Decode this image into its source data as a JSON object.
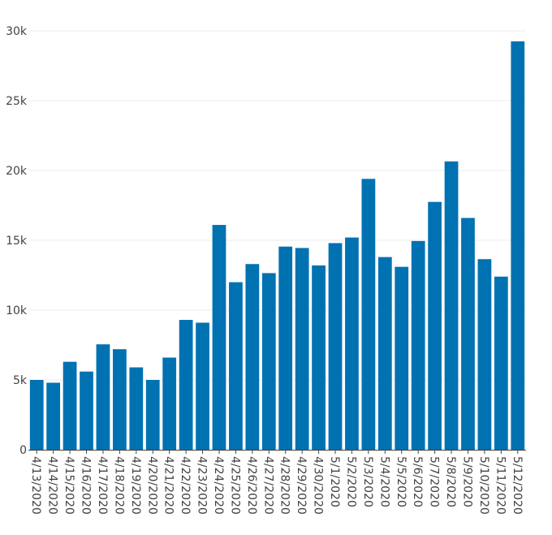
{
  "chart_data": {
    "type": "bar",
    "title": "",
    "xlabel": "",
    "ylabel": "",
    "ylim": [
      0,
      30000
    ],
    "y_ticks": [
      {
        "value": 0,
        "label": "0"
      },
      {
        "value": 5000,
        "label": "5k"
      },
      {
        "value": 10000,
        "label": "10k"
      },
      {
        "value": 15000,
        "label": "15k"
      },
      {
        "value": 20000,
        "label": "20k"
      },
      {
        "value": 25000,
        "label": "25k"
      },
      {
        "value": 30000,
        "label": "30k"
      }
    ],
    "grid": true,
    "bar_color": "#0072b2",
    "categories": [
      "4/13/2020",
      "4/14/2020",
      "4/15/2020",
      "4/16/2020",
      "4/17/2020",
      "4/18/2020",
      "4/19/2020",
      "4/20/2020",
      "4/21/2020",
      "4/22/2020",
      "4/23/2020",
      "4/24/2020",
      "4/25/2020",
      "4/26/2020",
      "4/27/2020",
      "4/28/2020",
      "4/29/2020",
      "4/30/2020",
      "5/1/2020",
      "5/2/2020",
      "5/3/2020",
      "5/4/2020",
      "5/5/2020",
      "5/6/2020",
      "5/7/2020",
      "5/8/2020",
      "5/9/2020",
      "5/10/2020",
      "5/11/2020",
      "5/12/2020"
    ],
    "values": [
      5000,
      4800,
      6300,
      5600,
      7550,
      7200,
      5900,
      5000,
      6600,
      9300,
      9100,
      16100,
      12000,
      13300,
      12650,
      14550,
      14450,
      13200,
      14800,
      15200,
      19400,
      13800,
      13100,
      14950,
      17750,
      20650,
      16600,
      13650,
      12400,
      29250
    ]
  }
}
